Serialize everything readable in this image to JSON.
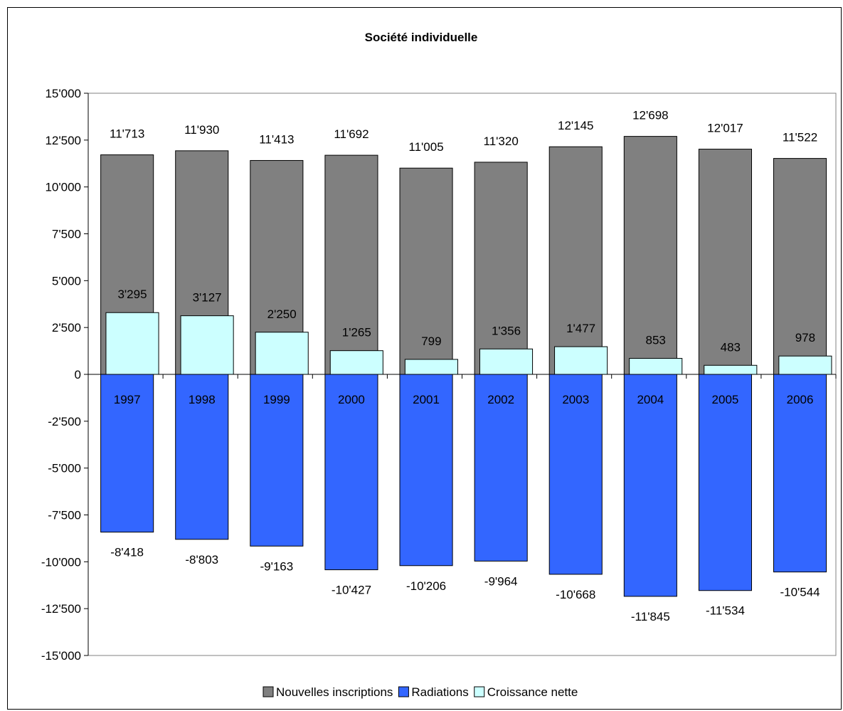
{
  "chart_data": {
    "type": "bar",
    "title": "Société individuelle",
    "categories": [
      "1997",
      "1998",
      "1999",
      "2000",
      "2001",
      "2002",
      "2003",
      "2004",
      "2005",
      "2006"
    ],
    "series": [
      {
        "name": "Nouvelles inscriptions",
        "color": "#808080",
        "values": [
          11713,
          11930,
          11413,
          11692,
          11005,
          11320,
          12145,
          12698,
          12017,
          11522
        ],
        "labels": [
          "11'713",
          "11'930",
          "11'413",
          "11'692",
          "11'005",
          "11'320",
          "12'145",
          "12'698",
          "12'017",
          "11'522"
        ]
      },
      {
        "name": "Radiations",
        "color": "#3366ff",
        "values": [
          -8418,
          -8803,
          -9163,
          -10427,
          -10206,
          -9964,
          -10668,
          -11845,
          -11534,
          -10544
        ],
        "labels": [
          "-8'418",
          "-8'803",
          "-9'163",
          "-10'427",
          "-10'206",
          "-9'964",
          "-10'668",
          "-11'845",
          "-11'534",
          "-10'544"
        ]
      },
      {
        "name": "Croissance nette",
        "color": "#ccffff",
        "values": [
          3295,
          3127,
          2250,
          1265,
          799,
          1356,
          1477,
          853,
          483,
          978
        ],
        "labels": [
          "3'295",
          "3'127",
          "2'250",
          "1'265",
          "799",
          "1'356",
          "1'477",
          "853",
          "483",
          "978"
        ]
      }
    ],
    "ylim": [
      -15000,
      15000
    ],
    "yticks": [
      15000,
      12500,
      10000,
      7500,
      5000,
      2500,
      0,
      -2500,
      -5000,
      -7500,
      -10000,
      -12500,
      -15000
    ],
    "ytick_labels": [
      "15'000",
      "12'500",
      "10'000",
      "7'500",
      "5'000",
      "2'500",
      "0",
      "-2'500",
      "-5'000",
      "-7'500",
      "-10'000",
      "-12'500",
      "-15'000"
    ],
    "grid": false,
    "legend": "bottom"
  }
}
